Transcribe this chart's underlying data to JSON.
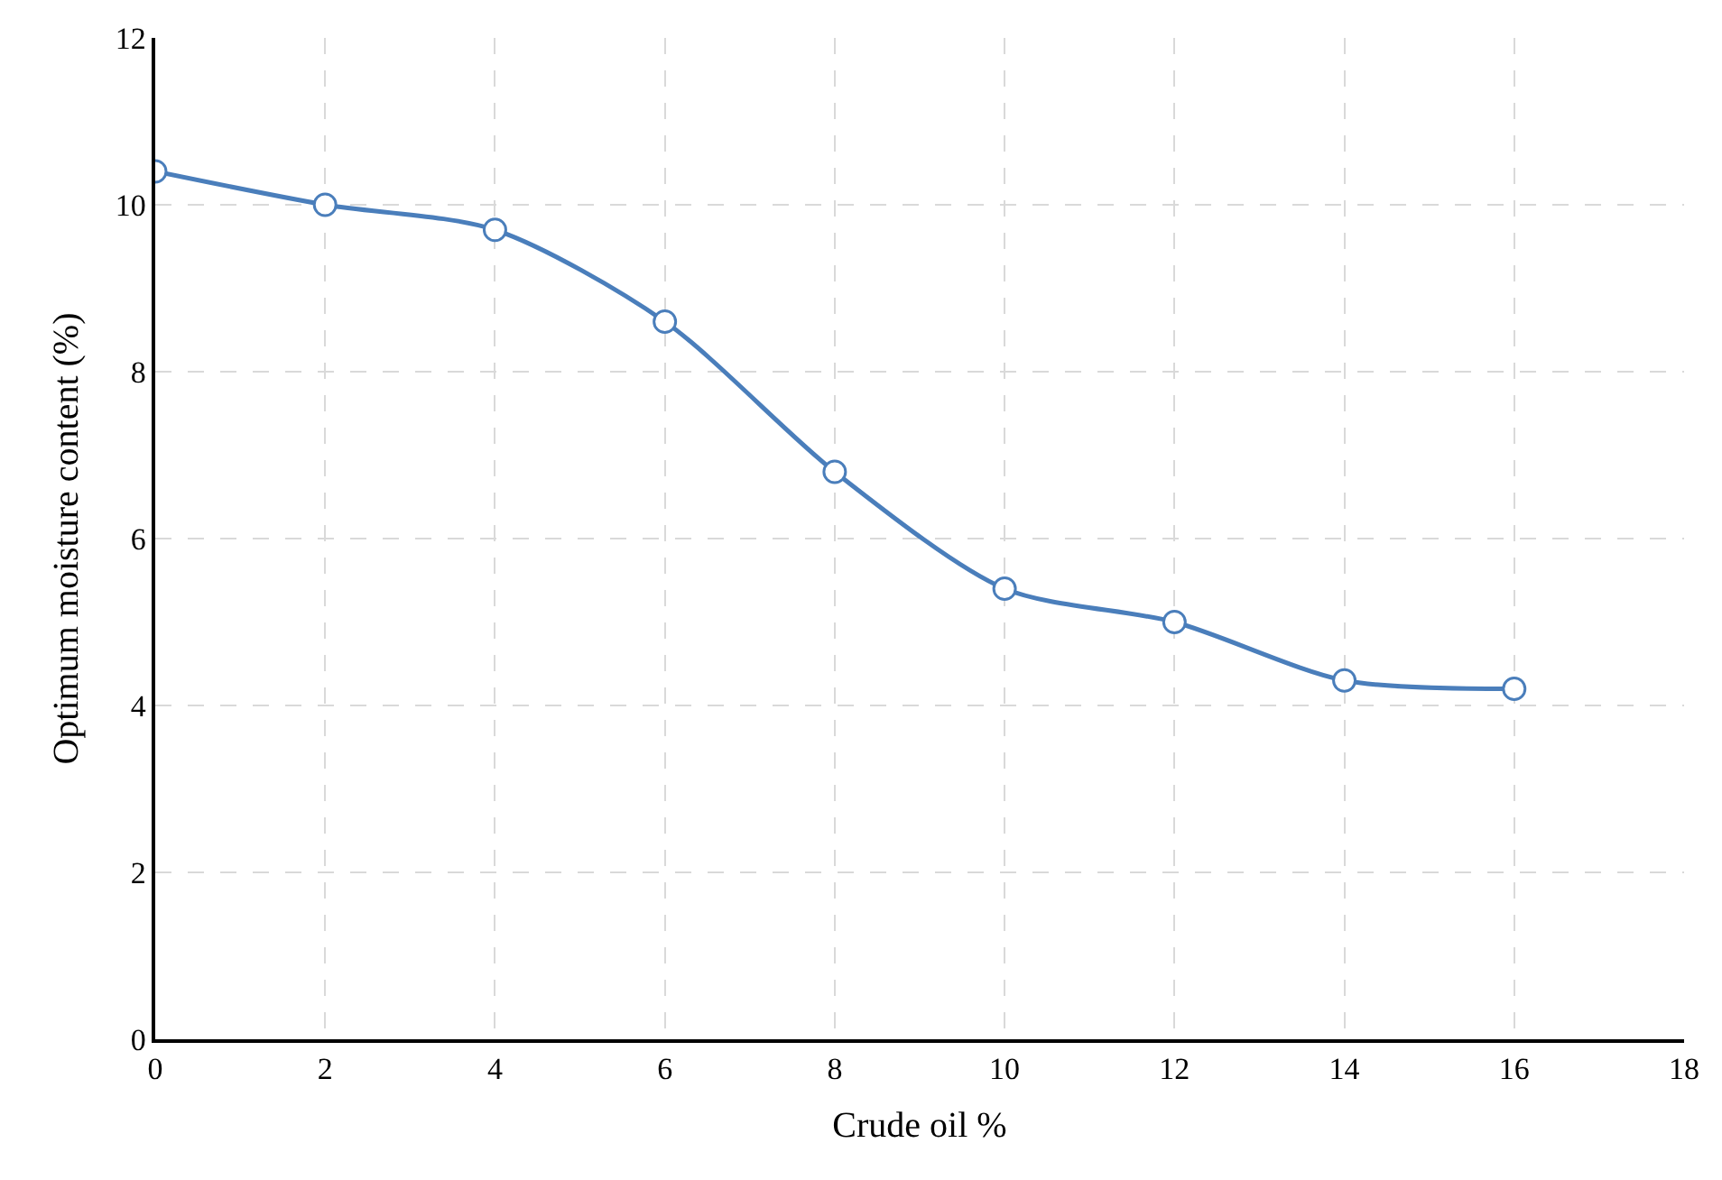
{
  "chart_data": {
    "type": "line",
    "xlabel": "Crude oil %",
    "ylabel": "Optimum moisture content (%)",
    "x": [
      0,
      2,
      4,
      6,
      8,
      10,
      12,
      14,
      16
    ],
    "series": [
      {
        "color": "#4a7ebb",
        "values": [
          10.4,
          10.0,
          9.7,
          8.6,
          6.8,
          5.4,
          5.0,
          4.3,
          4.2
        ]
      }
    ],
    "xlim": [
      0,
      18
    ],
    "xticks": [
      0,
      2,
      4,
      6,
      8,
      10,
      12,
      14,
      16,
      18
    ],
    "ylim": [
      0,
      12
    ],
    "yticks": [
      0,
      2,
      4,
      6,
      8,
      10,
      12
    ],
    "grid": true,
    "marker": "circle",
    "line_style": "solid"
  }
}
